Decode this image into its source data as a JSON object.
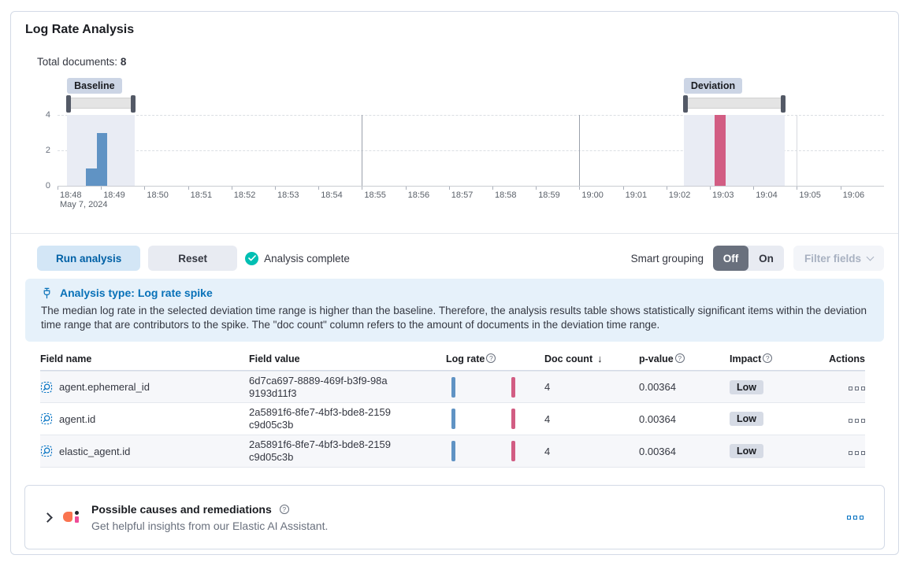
{
  "panel": {
    "title": "Log Rate Analysis",
    "total_documents_label": "Total documents:",
    "total_documents_value": "8"
  },
  "chart_data": {
    "type": "bar",
    "title": "",
    "xlabel": "",
    "ylabel": "",
    "ylim": [
      0,
      4
    ],
    "y_ticks": [
      {
        "value": 0,
        "label": "0"
      },
      {
        "value": 2,
        "label": "2"
      },
      {
        "value": 4,
        "label": "4"
      }
    ],
    "x_ticks": [
      "18:48",
      "18:49",
      "18:50",
      "18:51",
      "18:52",
      "18:53",
      "18:54",
      "18:55",
      "18:56",
      "18:57",
      "18:58",
      "18:59",
      "19:00",
      "19:01",
      "19:02",
      "19:03",
      "19:04",
      "19:05",
      "19:06"
    ],
    "x_sublabel": "May 7, 2024",
    "t_unit": "minutes after 18:48",
    "series": [
      {
        "name": "Baseline doc count",
        "color": "#6093c4",
        "bars": [
          {
            "t0": 0.65,
            "t1": 0.9,
            "value": 1
          },
          {
            "t0": 0.9,
            "t1": 1.15,
            "value": 3
          }
        ]
      },
      {
        "name": "Deviation doc count",
        "color": "#d25d83",
        "bars": [
          {
            "t0": 15.1,
            "t1": 15.37,
            "value": 4
          }
        ]
      }
    ],
    "brushes": [
      {
        "label": "Baseline",
        "t0": 0.22,
        "t1": 1.78
      },
      {
        "label": "Deviation",
        "t0": 14.4,
        "t1": 16.72
      }
    ],
    "major_gridlines": [
      {
        "t": 7,
        "color": "#9aa0ab"
      },
      {
        "t": 12,
        "color": "#9aa0ab"
      },
      {
        "t": 17,
        "color": "#d7dadf"
      }
    ],
    "grid": "dashed horizontal at 2 and 4"
  },
  "toolbar": {
    "run_label": "Run analysis",
    "reset_label": "Reset",
    "status_label": "Analysis complete",
    "smart_grouping_label": "Smart grouping",
    "off_label": "Off",
    "on_label": "On",
    "filter_fields_label": "Filter fields"
  },
  "callout": {
    "heading": "Analysis type: Log rate spike",
    "body": "The median log rate in the selected deviation time range is higher than the baseline. Therefore, the analysis results table shows statistically significant items within the deviation time range that are contributors to the spike. The \"doc count\" column refers to the amount of documents in the deviation time range."
  },
  "table": {
    "headers": {
      "field_name": "Field name",
      "field_value": "Field value",
      "log_rate": "Log rate",
      "doc_count": "Doc count",
      "p_value": "p-value",
      "impact": "Impact",
      "actions": "Actions"
    },
    "sort_arrow": "↓",
    "rows": [
      {
        "field_name": "agent.ephemeral_id",
        "field_value": "6d7ca697-8889-469f-b3f9-98a9193d11f3",
        "doc_count": "4",
        "p_value": "0.00364",
        "impact": "Low"
      },
      {
        "field_name": "agent.id",
        "field_value": "2a5891f6-8fe7-4bf3-bde8-2159c9d05c3b",
        "doc_count": "4",
        "p_value": "0.00364",
        "impact": "Low"
      },
      {
        "field_name": "elastic_agent.id",
        "field_value": "2a5891f6-8fe7-4bf3-bde8-2159c9d05c3b",
        "doc_count": "4",
        "p_value": "0.00364",
        "impact": "Low"
      }
    ]
  },
  "footer": {
    "title": "Possible causes and remediations",
    "subtitle": "Get helpful insights from our Elastic AI Assistant."
  },
  "colors": {
    "primary": "#0071c2",
    "success": "#00bfb3",
    "baseline_bar": "#6093c4",
    "deviation_bar": "#d25d83",
    "panel_border": "#d3dae6",
    "callout_bg": "#e6f1fa",
    "brush_region_bg": "#e9ecf4"
  }
}
